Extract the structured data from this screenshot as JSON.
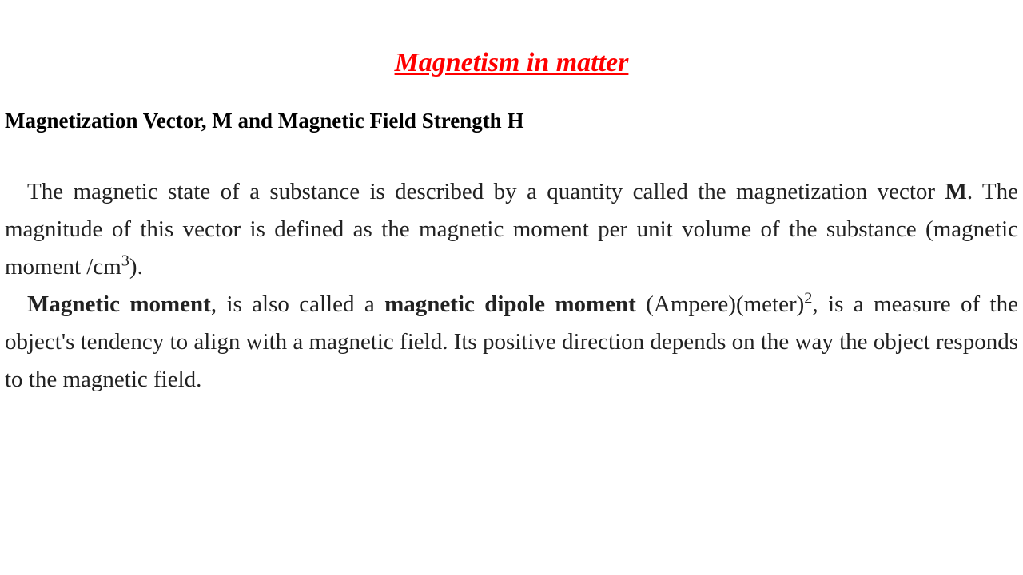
{
  "title": "Magnetism in matter",
  "subtitle": "Magnetization Vector, M and Magnetic Field Strength H",
  "paragraph1": {
    "part1": "The magnetic state of a substance is described by a quantity called the magnetization vector ",
    "bold1": "M",
    "part2": ".  The magnitude of this vector is defined as the magnetic moment per unit volume of the substance (magnetic moment /cm",
    "sup1": "3",
    "part3": ")."
  },
  "paragraph2": {
    "bold1": "Magnetic moment",
    "part1": ", is also called a ",
    "bold2": "magnetic dipole moment",
    "part2": " (Ampere)(meter)",
    "sup1": "2",
    "part3": ", is a measure of the object's tendency to align with a magnetic field. Its positive direction depends on the way the object responds to the magnetic field."
  },
  "styling": {
    "title_color": "#ff0000",
    "title_fontsize": 34,
    "title_weight": "bold",
    "title_style": "italic",
    "title_decoration": "underline",
    "subtitle_fontsize": 27,
    "subtitle_weight": "bold",
    "subtitle_color": "#000000",
    "body_fontsize": 29,
    "body_color": "#222222",
    "body_line_height": 1.62,
    "body_align": "justify",
    "background_color": "#ffffff",
    "font_family": "Times New Roman"
  }
}
